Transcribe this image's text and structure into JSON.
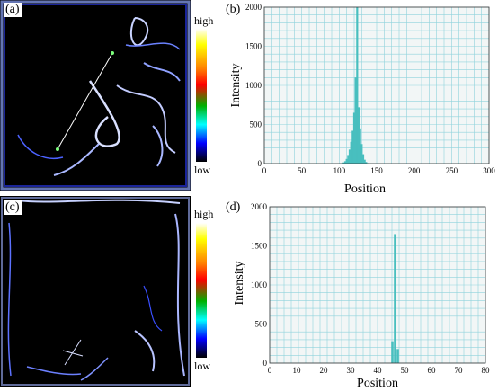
{
  "panels": {
    "a": {
      "label": "(a)"
    },
    "b": {
      "label": "(b)"
    },
    "c": {
      "label": "(c)"
    },
    "d": {
      "label": "(d)"
    }
  },
  "colorbar": {
    "high": "high",
    "low": "low"
  },
  "chart_data": [
    {
      "panel": "(b)",
      "type": "bar",
      "xlabel": "Position",
      "ylabel": "Intensity",
      "xlim": [
        0,
        300
      ],
      "ylim": [
        0,
        2000
      ],
      "x_ticks": [
        "0",
        "50",
        "100",
        "150",
        "200",
        "250",
        "300"
      ],
      "y_ticks": [
        "0",
        "500",
        "1000",
        "1500",
        "2000"
      ],
      "grid": true,
      "bar_color": "#48bfbf",
      "x": [
        104,
        106,
        108,
        110,
        112,
        114,
        116,
        118,
        120,
        122,
        124,
        126,
        128,
        130,
        132,
        134,
        136,
        138
      ],
      "values": [
        5,
        15,
        30,
        60,
        110,
        180,
        280,
        420,
        650,
        1100,
        2000,
        720,
        450,
        250,
        120,
        50,
        20,
        6
      ]
    },
    {
      "panel": "(d)",
      "type": "bar",
      "xlabel": "Position",
      "ylabel": "Intensity",
      "xlim": [
        0,
        80
      ],
      "ylim": [
        0,
        2000
      ],
      "x_ticks": [
        "0",
        "10",
        "20",
        "30",
        "40",
        "50",
        "60",
        "70",
        "80"
      ],
      "y_ticks": [
        "0",
        "500",
        "1000",
        "1500",
        "2000"
      ],
      "grid": true,
      "bar_color": "#48bfbf",
      "x": [
        45.5,
        46.5,
        47.5
      ],
      "values": [
        280,
        1650,
        180
      ]
    }
  ]
}
